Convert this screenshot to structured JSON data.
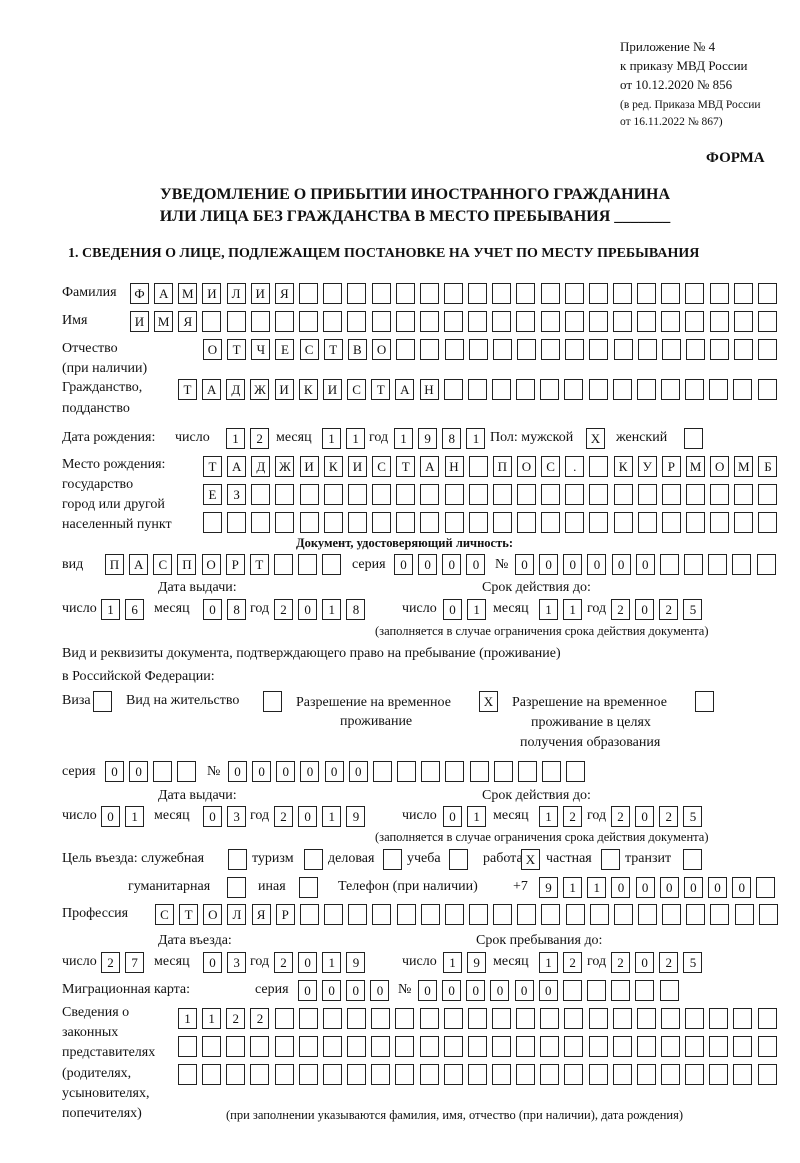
{
  "header": {
    "appendix": [
      "Приложение № 4",
      "к приказу МВД России",
      "от 10.12.2020 № 856"
    ],
    "amendment": [
      "(в ред. Приказа МВД России",
      "от 16.11.2022 № 867)"
    ],
    "form_label": "ФОРМА",
    "title_line1": "УВЕДОМЛЕНИЕ О ПРИБЫТИИ ИНОСТРАННОГО ГРАЖДАНИНА",
    "title_line2": "ИЛИ ЛИЦА БЕЗ ГРАЖДАНСТВА В МЕСТО ПРЕБЫВАНИЯ _______",
    "section1": "1. СВЕДЕНИЯ О ЛИЦЕ, ПОДЛЕЖАЩЕМ ПОСТАНОВКЕ НА УЧЕТ ПО МЕСТУ ПРЕБЫВАНИЯ"
  },
  "labels": {
    "surname": "Фамилия",
    "name": "Имя",
    "patronymic": "Отчество",
    "patronymic_note": "(при наличии)",
    "citizenship": "Гражданство,",
    "citizenship2": "подданство",
    "birth_date": "Дата рождения:",
    "day": "число",
    "month": "месяц",
    "year": "год",
    "sex_male": "Пол: мужской",
    "sex_female": "женский",
    "birthplace": [
      "Место рождения:",
      "государство",
      "город или другой",
      "населенный пункт"
    ],
    "id_doc": "Документ, удостоверяющий личность:",
    "doc_type": "вид",
    "series": "серия",
    "number": "№",
    "issue_date": "Дата выдачи:",
    "valid_until": "Срок действия до:",
    "validity_note": "(заполняется в случае ограничения срока действия документа)",
    "permit_doc": "Вид и реквизиты документа, подтверждающего право на пребывание (проживание)",
    "permit_doc2": "в Российской Федерации:",
    "visa": "Виза",
    "residence": "Вид на жительство",
    "temp_residence": [
      "Разрешение на временное",
      "проживание"
    ],
    "temp_residence_edu": [
      "Разрешение на временное",
      "проживание в целях",
      "получения образования"
    ],
    "purpose": "Цель въезда: служебная",
    "tourism": "туризм",
    "business": "деловая",
    "study": "учеба",
    "work": "работа",
    "private": "частная",
    "transit": "транзит",
    "humanitarian": "гуманитарная",
    "other": "иная",
    "phone": "Телефон (при наличии)",
    "phone_prefix": "+7",
    "profession": "Профессия",
    "entry_date": "Дата въезда:",
    "stay_until": "Срок пребывания до:",
    "migration_card": "Миграционная карта:",
    "reps": [
      "Сведения о",
      "законных",
      "представителях",
      "(родителях,",
      "усыновителях,",
      "попечителях)"
    ],
    "reps_note": "(при заполнении указываются фамилия, имя, отчество (при наличии), дата рождения)"
  },
  "values": {
    "surname": "ФАМИЛИЯ",
    "name": "ИМЯ",
    "patronymic": "ОТЧЕСТВО",
    "citizenship": "ТАДЖИКИСТАН",
    "birth_day": "12",
    "birth_month": "11",
    "birth_year": "1981",
    "sex_male": "X",
    "sex_female": "",
    "birthplace_1": "ТАДЖИКИСТАН ПОС. КУРМОМБ",
    "birthplace_2": "ЕЗ",
    "birthplace_3": "",
    "doc_type": "ПАСПОРТ",
    "doc_series": "0000",
    "doc_number": "000000",
    "doc_issue_day": "16",
    "doc_issue_month": "08",
    "doc_issue_year": "2018",
    "doc_valid_day": "01",
    "doc_valid_month": "11",
    "doc_valid_year": "2025",
    "permit_visa": "",
    "permit_residence": "",
    "permit_temp": "X",
    "permit_temp_edu": "",
    "permit_series": "00",
    "permit_number": "000000",
    "permit_issue_day": "01",
    "permit_issue_month": "03",
    "permit_issue_year": "2019",
    "permit_valid_day": "01",
    "permit_valid_month": "12",
    "permit_valid_year": "2025",
    "purpose_official": "",
    "purpose_tourism": "",
    "purpose_business": "",
    "purpose_study": "",
    "purpose_work": "X",
    "purpose_private": "",
    "purpose_transit": "",
    "purpose_humanitarian": "",
    "purpose_other": "",
    "phone": "911000000",
    "profession": "СТОЛЯР",
    "entry_day": "27",
    "entry_month": "03",
    "entry_year": "2019",
    "stay_day": "19",
    "stay_month": "12",
    "stay_year": "2025",
    "mig_series": "0000",
    "mig_number": "000000",
    "reps_1": "1122",
    "reps_2": "",
    "reps_3": ""
  }
}
